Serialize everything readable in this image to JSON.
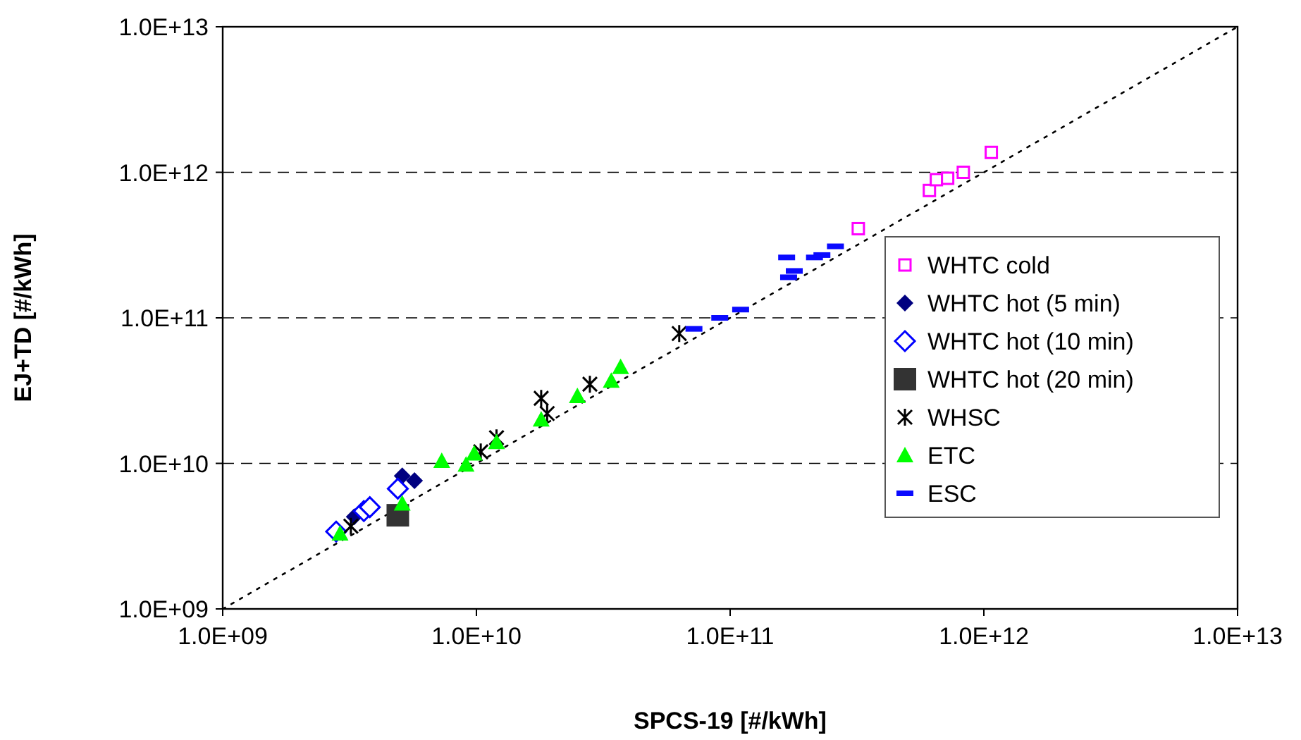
{
  "chart_data": {
    "type": "scatter",
    "xlabel": "SPCS-19 [#/kWh]",
    "ylabel": "EJ+TD [#/kWh]",
    "log": "xy",
    "grid": "y",
    "legend": "right",
    "xlim": [
      1000000000.0,
      10000000000000.0
    ],
    "ylim": [
      1000000000.0,
      10000000000000.0
    ],
    "xticks": [
      {
        "value": 1000000000.0,
        "label": "1.0E+09"
      },
      {
        "value": 10000000000.0,
        "label": "1.0E+10"
      },
      {
        "value": 100000000000.0,
        "label": "1.0E+11"
      },
      {
        "value": 1000000000000.0,
        "label": "1.0E+12"
      },
      {
        "value": 10000000000000.0,
        "label": "1.0E+13"
      }
    ],
    "yticks": [
      {
        "value": 1000000000.0,
        "label": "1.0E+09"
      },
      {
        "value": 10000000000.0,
        "label": "1.0E+10"
      },
      {
        "value": 100000000000.0,
        "label": "1.0E+11"
      },
      {
        "value": 1000000000000.0,
        "label": "1.0E+12"
      },
      {
        "value": 10000000000000.0,
        "label": "1.0E+13"
      }
    ],
    "series": [
      {
        "type": "line",
        "color": "#000000",
        "line_style": "dotted",
        "marker": "none",
        "x": [
          1000000000.0,
          10000000000000.0
        ],
        "values": [
          1000000000.0,
          10000000000000.0
        ]
      },
      {
        "name": "WHTC cold",
        "color": "#ff00ff",
        "marker": "square-open",
        "x": [
          320000000000.0,
          610000000000.0,
          650000000000.0,
          720000000000.0,
          830000000000.0,
          1070000000000.0
        ],
        "values": [
          410000000000.0,
          750000000000.0,
          890000000000.0,
          910000000000.0,
          1000000000000.0,
          1370000000000.0
        ]
      },
      {
        "name": "WHTC hot (5 min)",
        "color": "#000080",
        "marker": "diamond",
        "x": [
          3300000000.0,
          5100000000.0,
          5700000000.0
        ],
        "values": [
          4300000000.0,
          8200000000.0,
          7600000000.0
        ]
      },
      {
        "name": "WHTC hot (10 min)",
        "color": "#0000ff",
        "marker": "diamond-open",
        "x": [
          2800000000.0,
          3600000000.0,
          3800000000.0,
          4900000000.0
        ],
        "values": [
          3400000000.0,
          4700000000.0,
          5000000000.0,
          6700000000.0
        ]
      },
      {
        "name": "WHTC hot (20 min)",
        "color": "#333333",
        "marker": "square",
        "x": [
          4900000000.0
        ],
        "values": [
          4400000000.0
        ]
      },
      {
        "name": "WHSC",
        "color": "#000000",
        "marker": "cross",
        "x": [
          3200000000.0,
          10400000000.0,
          12000000000.0,
          18000000000.0,
          19000000000.0,
          28000000000.0,
          63000000000.0
        ],
        "values": [
          3700000000.0,
          12000000000.0,
          15000000000.0,
          28000000000.0,
          22000000000.0,
          35000000000.0,
          78000000000.0
        ]
      },
      {
        "name": "ETC",
        "color": "#00ff00",
        "marker": "triangle",
        "x": [
          2900000000.0,
          5100000000.0,
          7300000000.0,
          9100000000.0,
          9800000000.0,
          12000000000.0,
          18000000000.0,
          25000000000.0,
          34000000000.0,
          37000000000.0
        ],
        "values": [
          3300000000.0,
          5300000000.0,
          10400000000.0,
          9800000000.0,
          11700000000.0,
          14000000000.0,
          20000000000.0,
          29000000000.0,
          37000000000.0,
          46000000000.0
        ]
      },
      {
        "name": "ESC",
        "color": "#0a0aff",
        "x": [
          72000000000.0,
          91000000000.0,
          110000000000.0,
          167000000000.0,
          179000000000.0,
          170000000000.0,
          215000000000.0,
          230000000000.0,
          260000000000.0
        ],
        "values": [
          84000000000.0,
          100000000000.0,
          114000000000.0,
          260000000000.0,
          210000000000.0,
          190000000000.0,
          260000000000.0,
          270000000000.0,
          310000000000.0
        ]
      }
    ]
  }
}
